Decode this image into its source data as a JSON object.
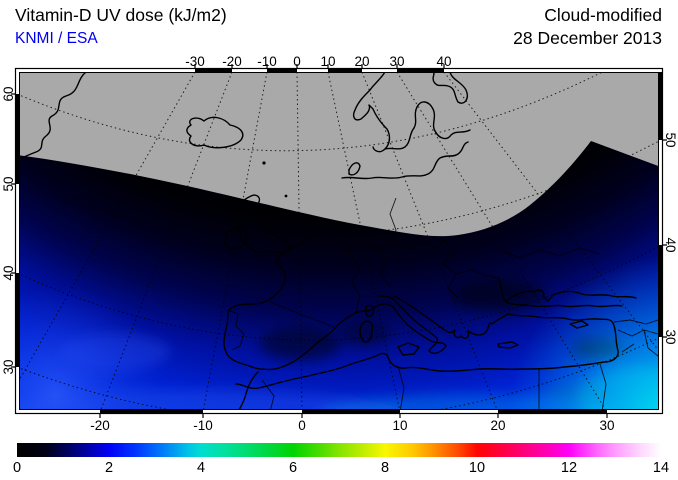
{
  "header": {
    "title": "Vitamin-D UV dose (kJ/m2)",
    "attribution": "KNMI / ESA",
    "attribution_color": "#0000f0",
    "mode": "Cloud-modified",
    "date": "28 December 2013"
  },
  "map": {
    "no_data_color": "#a9a9a9",
    "axes": {
      "top": [
        "-30",
        "-20",
        "-10",
        "0",
        "10",
        "20",
        "30",
        "40"
      ],
      "bottom": [
        "-20",
        "-10",
        "0",
        "10",
        "20",
        "30"
      ],
      "left": [
        "60",
        "50",
        "40",
        "30"
      ],
      "right": [
        "50",
        "40",
        "30"
      ]
    }
  },
  "colorbar": {
    "unit": "kJ/m2",
    "min": 0,
    "max": 14,
    "labels": [
      "0",
      "2",
      "4",
      "6",
      "8",
      "10",
      "12",
      "14"
    ],
    "stops": [
      {
        "v": 0,
        "c": "#000000"
      },
      {
        "v": 0.6,
        "c": "#000014"
      },
      {
        "v": 1.2,
        "c": "#000070"
      },
      {
        "v": 2,
        "c": "#0000f5"
      },
      {
        "v": 2.6,
        "c": "#0038ff"
      },
      {
        "v": 3.2,
        "c": "#0080f8"
      },
      {
        "v": 3.7,
        "c": "#00c0e8"
      },
      {
        "v": 4,
        "c": "#00ddd0"
      },
      {
        "v": 4.5,
        "c": "#00e0a0"
      },
      {
        "v": 5,
        "c": "#00dc70"
      },
      {
        "v": 5.6,
        "c": "#00d630"
      },
      {
        "v": 6,
        "c": "#00d400"
      },
      {
        "v": 6.6,
        "c": "#4cdc00"
      },
      {
        "v": 7,
        "c": "#84e400"
      },
      {
        "v": 7.6,
        "c": "#c8ee00"
      },
      {
        "v": 8,
        "c": "#f8f800"
      },
      {
        "v": 8.6,
        "c": "#ffc800"
      },
      {
        "v": 9,
        "c": "#ff9800"
      },
      {
        "v": 9.6,
        "c": "#ff4800"
      },
      {
        "v": 10,
        "c": "#ff0400"
      },
      {
        "v": 10.6,
        "c": "#ff0048"
      },
      {
        "v": 11,
        "c": "#ff0078"
      },
      {
        "v": 11.6,
        "c": "#ff00c0"
      },
      {
        "v": 12,
        "c": "#ff00fa"
      },
      {
        "v": 12.6,
        "c": "#ff64ff"
      },
      {
        "v": 13,
        "c": "#ff9cff"
      },
      {
        "v": 13.5,
        "c": "#ffd2ff"
      },
      {
        "v": 14,
        "c": "#ffffff"
      }
    ]
  },
  "chart_data": {
    "type": "heatmap",
    "title": "Vitamin-D UV dose (kJ/m2)",
    "subtitle": "Cloud-modified, 28 December 2013",
    "source": "KNMI / ESA",
    "colorbar_range": [
      0,
      14
    ],
    "lon_ticks_top": [
      -30,
      -20,
      -10,
      0,
      10,
      20,
      30,
      40
    ],
    "lon_ticks_bottom": [
      -20,
      -10,
      0,
      10,
      20,
      30
    ],
    "lat_ticks_left": [
      60,
      50,
      40,
      30
    ],
    "lat_ticks_right": [
      50,
      40,
      30
    ],
    "no_data_region": "grey polar-night area north of winter terminator arc",
    "approx_values_kJm2": {
      "terminator_edge": 0,
      "central_europe": 0.3,
      "iberia_mediterranean": 1.5,
      "north_africa_coast": 2.5,
      "southeast_corner_levant": 4
    }
  }
}
